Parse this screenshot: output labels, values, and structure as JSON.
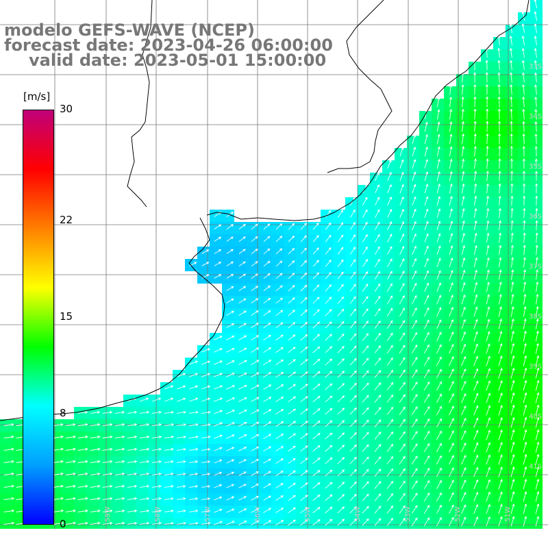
{
  "title": {
    "line1": "modelo GEFS-WAVE (NCEP)",
    "line2": "forecast date: 2023-04-26 06:00:00",
    "line3": "valid date: 2023-05-01 15:00:00"
  },
  "colorbar": {
    "unit": "[m/s]",
    "min": 0,
    "max": 30,
    "ticks": [
      "30",
      "22",
      "15",
      "8",
      "0"
    ],
    "tick_values": [
      30,
      22,
      15,
      8,
      0
    ],
    "colors": [
      "#0000ff",
      "#00a0ff",
      "#00ffff",
      "#00ff00",
      "#ffff00",
      "#ff8000",
      "#ff0000",
      "#c0007a"
    ]
  },
  "map": {
    "type": "wind-field",
    "quantity": "wind speed",
    "arrow_color": "#ffffff",
    "land_color": "#ffffff",
    "grid_color": "#777777",
    "coastline_color": "#000000",
    "lat_labels": [
      "33S",
      "34S",
      "35S",
      "36S",
      "37S",
      "38S",
      "39S",
      "40S",
      "41S"
    ],
    "lon_labels": [
      "59W",
      "58W",
      "57W",
      "56W",
      "55W",
      "54W",
      "53W",
      "52W",
      "51W"
    ]
  }
}
